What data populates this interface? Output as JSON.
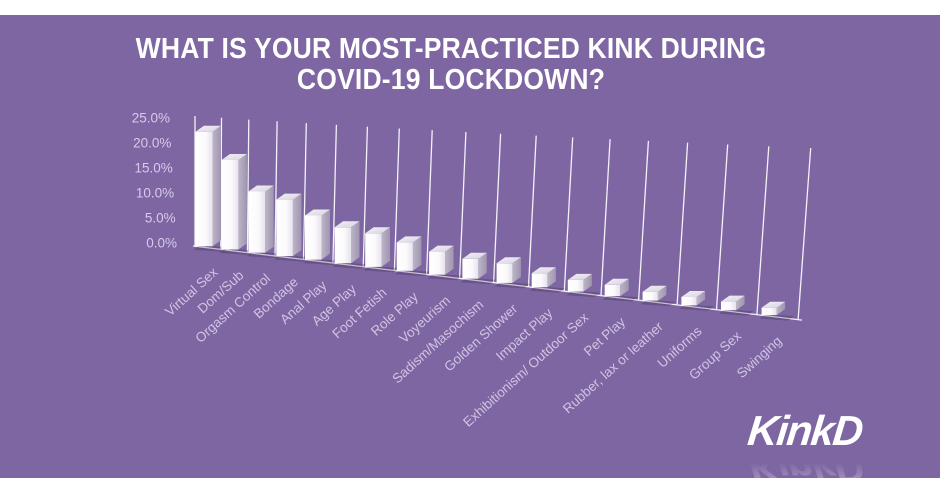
{
  "logo": {
    "text": "KinkD"
  },
  "colors": {
    "frame": "#FFFFFF",
    "background": "#7E66A3",
    "title_text": "#FFFFFF",
    "axis_tick_label": "#D6CCEA",
    "category_label": "#D0C5E4",
    "gridline": "#F4F1F9",
    "bar_front": "#FFFFFF",
    "bar_side": "#A9A0B8",
    "bar_top": "#E9E5EF",
    "bar_shadow": "rgba(30,15,50,0.22)",
    "logo_text": "#FFFFFF"
  },
  "chart_data": {
    "type": "bar",
    "style": "3d-perspective",
    "title": "WHAT IS YOUR MOST-PRACTICED KINK DURING COVID-19 LOCKDOWN?",
    "categories": [
      "Virtual Sex",
      "Dom/Sub",
      "Orgasm Control",
      "Bondage",
      "Anal Play",
      "Age Play",
      "Foot Fetish",
      "Role Play",
      "Voyeurism",
      "Sadism/Masochism",
      "Golden Shower",
      "Impact Play",
      "Exhibitionism/ Outdoor Sex",
      "Pet Play",
      "Rubber, lax or leather",
      "Uniforms",
      "Group Sex",
      "Swinging"
    ],
    "values": [
      22,
      17,
      11.5,
      10.5,
      8.1,
      6.5,
      6,
      5,
      4,
      3.4,
      3.3,
      2.3,
      1.9,
      1.8,
      1.4,
      1.3,
      1.3,
      1.1
    ],
    "value_unit": "percent",
    "xlabel": "",
    "ylabel": "",
    "ylim": [
      0,
      25
    ],
    "yticks": [
      "25.0%",
      "20.0%",
      "15.0%",
      "10.0%",
      "5.0%",
      "0.0%"
    ],
    "grid": "vertical category drop lines",
    "legend": "none",
    "bar_color": "white"
  }
}
